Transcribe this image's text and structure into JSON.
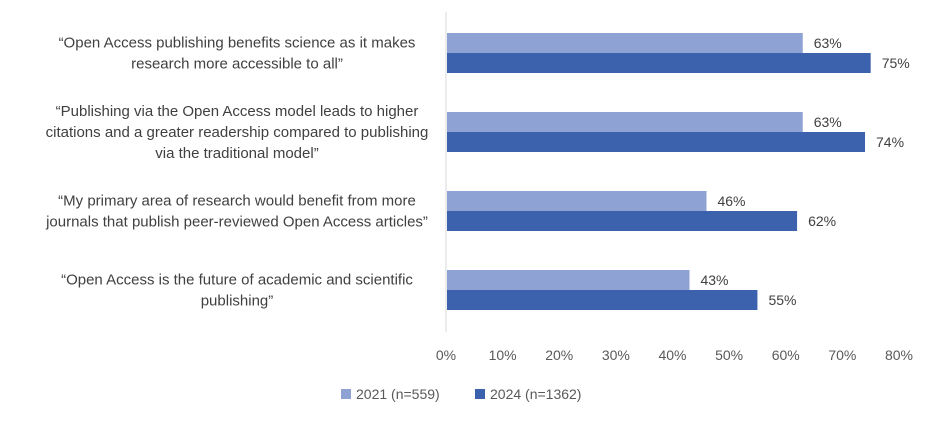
{
  "chart_data": {
    "type": "bar",
    "orientation": "horizontal",
    "categories": [
      [
        "“Open Access publishing benefits science as it makes",
        "research more accessible to all”"
      ],
      [
        "“Publishing via the Open Access model leads to higher",
        "citations and a greater readership compared to publishing",
        "via the traditional model”"
      ],
      [
        "“My primary area of research would benefit from more",
        "journals that publish peer-reviewed Open Access articles”"
      ],
      [
        "“Open Access is the future of academic and scientific",
        "publishing”"
      ]
    ],
    "series": [
      {
        "name": "2021 (n=559)",
        "color": "#8fa2d4",
        "values": [
          63,
          63,
          46,
          43
        ],
        "labels": [
          "63%",
          "63%",
          "46%",
          "43%"
        ]
      },
      {
        "name": "2024 (n=1362)",
        "color": "#3d62ad",
        "values": [
          75,
          74,
          62,
          55
        ],
        "labels": [
          "75%",
          "74%",
          "62%",
          "55%"
        ]
      }
    ],
    "xlim": [
      0,
      80
    ],
    "xticks": [
      0,
      10,
      20,
      30,
      40,
      50,
      60,
      70,
      80
    ],
    "xtick_labels": [
      "0%",
      "10%",
      "20%",
      "30%",
      "40%",
      "50%",
      "60%",
      "70%",
      "80%"
    ],
    "grid": false,
    "legend_position": "bottom"
  }
}
